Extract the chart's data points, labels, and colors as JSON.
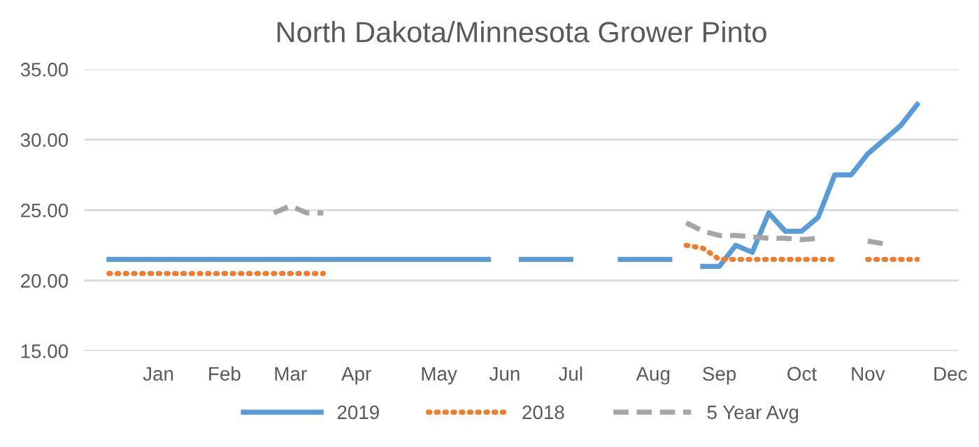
{
  "chart_data": {
    "type": "line",
    "title": "North Dakota/Minnesota Grower Pinto",
    "categories": [
      null,
      null,
      null,
      null,
      "Jan",
      null,
      null,
      null,
      "Feb",
      null,
      null,
      null,
      "Mar",
      null,
      null,
      null,
      "Apr",
      null,
      null,
      null,
      null,
      "May",
      null,
      null,
      null,
      "Jun",
      null,
      null,
      null,
      "Jul",
      null,
      null,
      null,
      null,
      "Aug",
      null,
      null,
      null,
      "Sep",
      null,
      null,
      null,
      null,
      "Oct",
      null,
      null,
      null,
      "Nov",
      null,
      null,
      null,
      null,
      "Dec"
    ],
    "series": [
      {
        "name": "2019",
        "color": "#5b9bd5",
        "line_style": "solid",
        "values": [
          null,
          21.5,
          21.5,
          21.5,
          21.5,
          21.5,
          21.5,
          21.5,
          21.5,
          21.5,
          21.5,
          21.5,
          21.5,
          21.5,
          21.5,
          21.5,
          21.5,
          21.5,
          21.5,
          21.5,
          21.5,
          21.5,
          21.5,
          21.5,
          21.5,
          null,
          21.5,
          21.5,
          21.5,
          21.5,
          null,
          null,
          21.5,
          21.5,
          21.5,
          21.5,
          null,
          21.0,
          21.0,
          22.5,
          22.0,
          24.8,
          23.5,
          23.5,
          24.5,
          27.5,
          27.5,
          29.0,
          30.0,
          31.0,
          32.5,
          null,
          null
        ]
      },
      {
        "name": "2018",
        "color": "#ed7d31",
        "line_style": "dotted",
        "values": [
          null,
          20.5,
          20.5,
          20.5,
          20.5,
          20.5,
          20.5,
          20.5,
          20.5,
          20.5,
          20.5,
          20.5,
          20.5,
          20.5,
          20.5,
          null,
          null,
          null,
          null,
          null,
          null,
          null,
          null,
          null,
          null,
          null,
          null,
          null,
          null,
          null,
          null,
          null,
          null,
          null,
          null,
          null,
          22.5,
          22.3,
          21.5,
          21.5,
          21.5,
          21.5,
          21.5,
          21.5,
          21.5,
          21.5,
          null,
          21.5,
          21.5,
          21.5,
          21.5,
          null,
          null
        ]
      },
      {
        "name": "5 Year Avg",
        "color": "#a5a5a5",
        "line_style": "dashed",
        "values": [
          null,
          null,
          null,
          null,
          null,
          null,
          null,
          null,
          null,
          null,
          null,
          24.8,
          25.3,
          24.8,
          24.8,
          null,
          null,
          null,
          null,
          null,
          null,
          null,
          null,
          null,
          null,
          null,
          null,
          null,
          null,
          null,
          null,
          null,
          null,
          null,
          null,
          null,
          24.1,
          23.5,
          23.2,
          23.2,
          23.1,
          23.0,
          23.0,
          22.9,
          23.0,
          null,
          null,
          22.8,
          22.6,
          null,
          null,
          null,
          null
        ]
      }
    ],
    "ylim": [
      15,
      35
    ],
    "yticks": [
      {
        "value": 15,
        "label": "15.00"
      },
      {
        "value": 20,
        "label": "20.00"
      },
      {
        "value": 25,
        "label": "25.00"
      },
      {
        "value": 30,
        "label": "30.00"
      },
      {
        "value": 35,
        "label": "35.00"
      }
    ],
    "grid": "y",
    "legend": "bottom",
    "marker": "none"
  }
}
